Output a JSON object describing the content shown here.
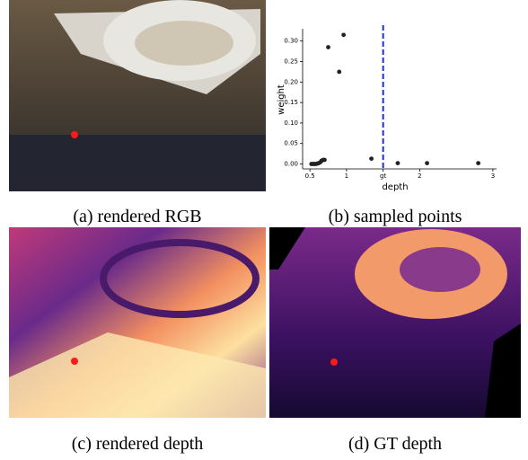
{
  "captions": [
    "(a) rendered RGB",
    "(b) sampled points",
    "(c) rendered depth",
    "(d) GT depth"
  ],
  "chart_data": {
    "type": "scatter",
    "x_label": "depth",
    "y_label": "weight",
    "series": [
      {
        "color": "#222222",
        "x": [
          0.52,
          0.54,
          0.56,
          0.58,
          0.6,
          0.62,
          0.64,
          0.66,
          0.68,
          0.7,
          0.75,
          0.9,
          0.96,
          1.34,
          1.7,
          2.1,
          2.8
        ],
        "values": [
          0,
          0,
          0,
          0,
          0.001,
          0.002,
          0.004,
          0.008,
          0.01,
          0.01,
          0.285,
          0.225,
          0.315,
          0.013,
          0.002,
          0.002,
          0.002
        ]
      }
    ],
    "reference_line": {
      "x": 1.5,
      "color": "#1f2fd6"
    },
    "xlim": [
      0.4,
      3.05
    ],
    "ylim": [
      -0.012,
      0.33
    ],
    "xticks": [
      0.5,
      1,
      {
        "value": 1.5,
        "label": "gt"
      },
      2,
      3
    ],
    "yticks": [
      {
        "value": 0,
        "label": "0.00"
      },
      {
        "value": 0.05,
        "label": "0.05"
      },
      {
        "value": 0.1,
        "label": "0.10"
      },
      {
        "value": 0.15,
        "label": "0.15"
      },
      {
        "value": 0.2,
        "label": "0.20"
      },
      {
        "value": 0.25,
        "label": "0.25"
      },
      {
        "value": 0.3,
        "label": "0.30"
      }
    ]
  }
}
